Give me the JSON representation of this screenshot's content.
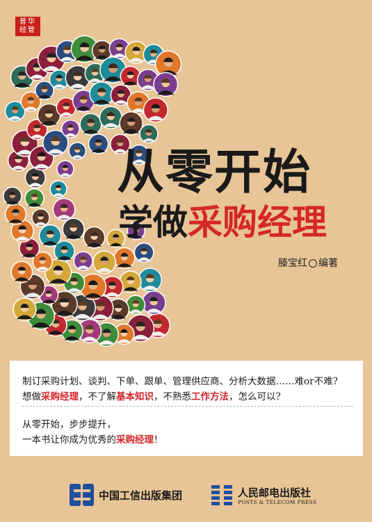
{
  "badge": {
    "line1": "普华",
    "line2": "经管"
  },
  "title": {
    "line1": "从零开始",
    "line2_black": "学做",
    "line2_red": "采购经理"
  },
  "author": {
    "name": "滕宝红",
    "role": "编著"
  },
  "blurb": {
    "line1": "制订采购计划、谈判、下单、跟单、管理供应商、分析大数据……难or不难?",
    "line2_a": "想做",
    "line2_red1": "采购经理",
    "line2_b": "，不了解",
    "line2_red2": "基本知识",
    "line2_c": "，不熟悉",
    "line2_red3": "工作方法",
    "line2_d": "，怎么可以?",
    "line3": "从零开始，步步提升，",
    "line4_a": "一本书让你成为优秀的",
    "line4_red": "采购经理",
    "line4_b": "！"
  },
  "publishers": {
    "group_name": "中国工信出版集团",
    "press_name": "人民邮电出版社",
    "press_english": "POSTS & TELECOM PRESS"
  },
  "colors": {
    "background": "#e8c596",
    "accent": "#d4262b",
    "badge": "#c9201b"
  }
}
